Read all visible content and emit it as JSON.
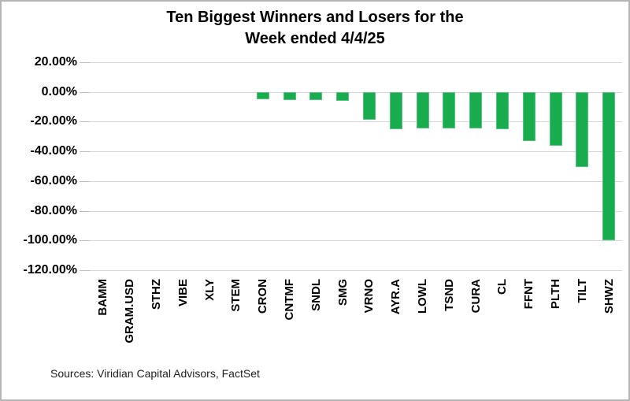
{
  "chart_data": {
    "type": "bar",
    "title": "Ten Biggest Winners and Losers for the Week ended 4/4/25",
    "title_lines": [
      "Ten Biggest Winners and Losers for the",
      "Week ended 4/4/25"
    ],
    "categories": [
      "BAMM",
      "GRAM.USD",
      "STHZ",
      "VIBE",
      "XLY",
      "STEM",
      "CRON",
      "CNTMF",
      "SNDL",
      "SMG",
      "VRNO",
      "AYR.A",
      "LOWL",
      "TSND",
      "CURA",
      "CL",
      "FFNT",
      "PLTH",
      "TILT",
      "SHWZ"
    ],
    "values": [
      0,
      0,
      0,
      0,
      0,
      0,
      -5.0,
      -5.5,
      -5.2,
      -6.0,
      -18.5,
      -25.0,
      -24.5,
      -24.8,
      -24.7,
      -25.0,
      -33.0,
      -36.0,
      -50.5,
      -100.0
    ],
    "value_format": "percent",
    "xlabel": "",
    "ylabel": "",
    "ylim": [
      -120,
      20
    ],
    "ytick_values": [
      20,
      0,
      -20,
      -40,
      -60,
      -80,
      -100,
      -120
    ],
    "ytick_labels": [
      "20.00%",
      "0.00%",
      "-20.00%",
      "-40.00%",
      "-60.00%",
      "-80.00%",
      "-100.00%",
      "-120.00%"
    ],
    "grid": true,
    "legend": "none",
    "bar_color": "#19ac4e",
    "gridline_color": "#d6d6d6",
    "text_color": "#000000",
    "source_note": "Sources: Viridian Capital Advisors, FactSet"
  }
}
